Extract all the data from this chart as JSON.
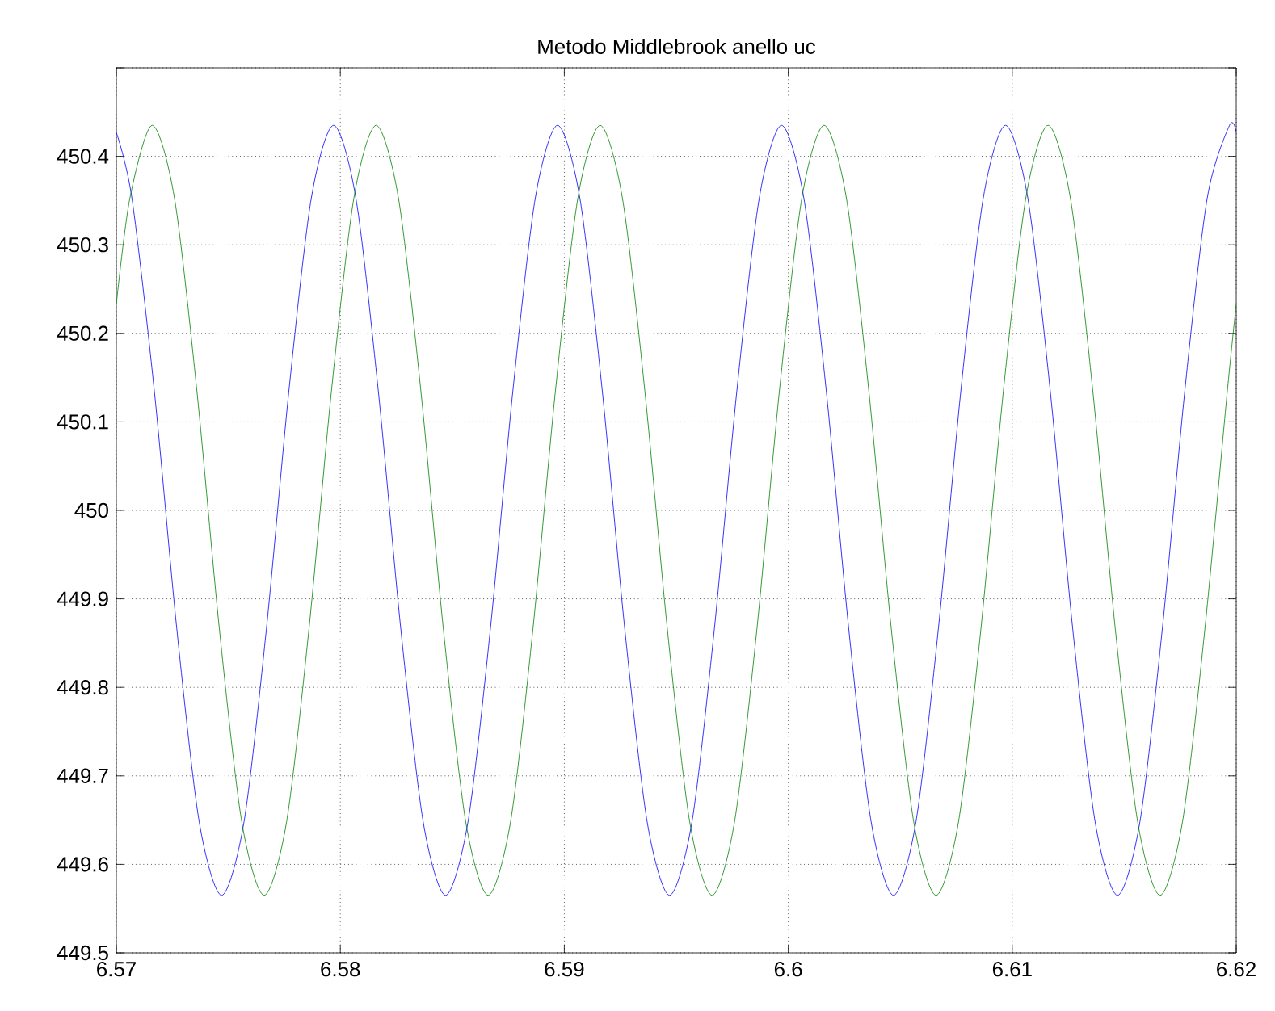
{
  "chart_data": {
    "type": "line",
    "title": "Metodo Middlebrook anello uc",
    "xlim": [
      6.57,
      6.62
    ],
    "xticks": [
      6.57,
      6.58,
      6.59,
      6.6,
      6.61,
      6.62
    ],
    "ylim": [
      449.5,
      450.5
    ],
    "yticks": [
      449.5,
      449.6,
      449.7,
      449.8,
      449.9,
      450,
      450.1,
      450.2,
      450.3,
      450.4,
      {
        "value": 450.5,
        "label": null
      }
    ],
    "grid": true,
    "marker": "none",
    "line_style": "solid",
    "series": [
      {
        "color": "#0000ff",
        "x": [
          6.57,
          6.5707,
          6.5717,
          6.5727,
          6.5737,
          6.5747,
          6.5757,
          6.5767,
          6.5777,
          6.5787,
          6.5797,
          6.5807,
          6.5817,
          6.5827,
          6.5837,
          6.5847,
          6.5857,
          6.5867,
          6.5877,
          6.5887,
          6.5897,
          6.5907,
          6.5917,
          6.5927,
          6.5937,
          6.5947,
          6.5957,
          6.5967,
          6.5977,
          6.5987,
          6.5997,
          6.6007,
          6.6017,
          6.6027,
          6.6037,
          6.6047,
          6.6057,
          6.6067,
          6.6077,
          6.6087,
          6.6097,
          6.6107,
          6.6117,
          6.6127,
          6.6137,
          6.6147,
          6.6157,
          6.6167,
          6.6177,
          6.6187,
          6.6197,
          6.62
        ],
        "values": [
          450.427,
          450.352,
          450.134,
          449.866,
          449.648,
          449.565,
          449.648,
          449.866,
          450.134,
          450.352,
          450.435,
          450.352,
          450.134,
          449.866,
          449.648,
          449.565,
          449.648,
          449.866,
          450.134,
          450.352,
          450.435,
          450.352,
          450.134,
          449.866,
          449.648,
          449.565,
          449.648,
          449.866,
          450.134,
          450.352,
          450.435,
          450.352,
          450.134,
          449.866,
          449.648,
          449.565,
          449.648,
          449.866,
          450.134,
          450.352,
          450.435,
          450.352,
          450.134,
          449.866,
          449.648,
          449.565,
          449.648,
          449.866,
          450.134,
          450.352,
          450.435,
          450.427
        ]
      },
      {
        "color": "#008000",
        "x": [
          6.57,
          6.5706,
          6.5716,
          6.5726,
          6.5736,
          6.5746,
          6.5756,
          6.5766,
          6.5776,
          6.5786,
          6.5796,
          6.5806,
          6.5816,
          6.5826,
          6.5836,
          6.5846,
          6.5856,
          6.5866,
          6.5876,
          6.5886,
          6.5896,
          6.5906,
          6.5916,
          6.5926,
          6.5936,
          6.5946,
          6.5956,
          6.5966,
          6.5976,
          6.5986,
          6.5996,
          6.6006,
          6.6016,
          6.6026,
          6.6036,
          6.6046,
          6.6056,
          6.6066,
          6.6076,
          6.6086,
          6.6096,
          6.6106,
          6.6116,
          6.6126,
          6.6136,
          6.6146,
          6.6156,
          6.6166,
          6.6176,
          6.6186,
          6.6196,
          6.62
        ],
        "values": [
          450.233,
          450.352,
          450.435,
          450.352,
          450.134,
          449.866,
          449.648,
          449.565,
          449.648,
          449.866,
          450.134,
          450.352,
          450.435,
          450.352,
          450.134,
          449.866,
          449.648,
          449.565,
          449.648,
          449.866,
          450.134,
          450.352,
          450.435,
          450.352,
          450.134,
          449.866,
          449.648,
          449.565,
          449.648,
          449.866,
          450.134,
          450.352,
          450.435,
          450.352,
          450.134,
          449.866,
          449.648,
          449.565,
          449.648,
          449.866,
          450.134,
          450.352,
          450.435,
          450.352,
          450.134,
          449.866,
          449.648,
          449.565,
          449.648,
          449.866,
          450.134,
          450.233
        ]
      }
    ]
  }
}
